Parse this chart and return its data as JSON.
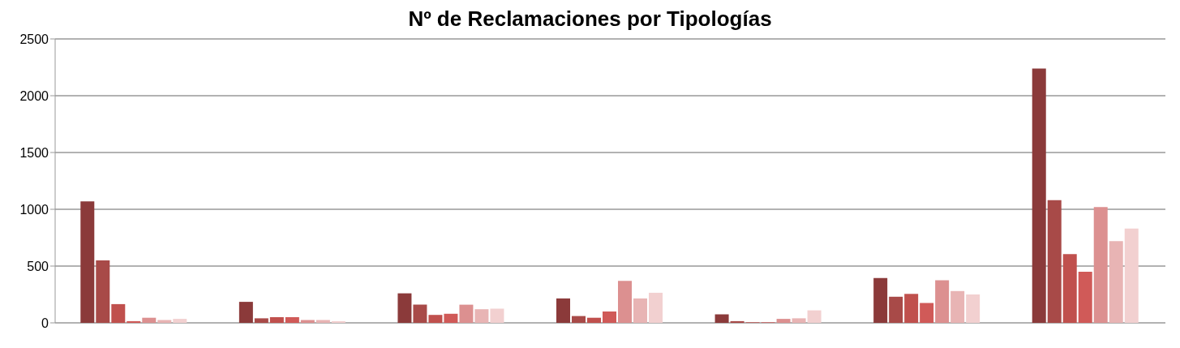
{
  "chart_data": {
    "type": "bar",
    "title": "Nº de Reclamaciones por Tipologías",
    "categories": [
      null,
      null,
      null,
      null,
      null,
      null,
      null
    ],
    "series": [
      {
        "color": "#8b3a3a",
        "values": [
          1070,
          185,
          260,
          215,
          75,
          395,
          2240
        ]
      },
      {
        "color": "#a84a48",
        "values": [
          550,
          40,
          160,
          60,
          15,
          230,
          1080
        ]
      },
      {
        "color": "#c0504d",
        "values": [
          165,
          50,
          70,
          45,
          5,
          255,
          605
        ]
      },
      {
        "color": "#d05a58",
        "values": [
          15,
          50,
          80,
          100,
          5,
          175,
          450
        ]
      },
      {
        "color": "#dc9090",
        "values": [
          45,
          25,
          160,
          370,
          35,
          375,
          1020
        ]
      },
      {
        "color": "#e8b4b4",
        "values": [
          25,
          25,
          120,
          215,
          40,
          280,
          720
        ]
      },
      {
        "color": "#f2d0d0",
        "values": [
          35,
          15,
          125,
          265,
          110,
          250,
          830
        ]
      }
    ],
    "ylim": [
      0,
      2500
    ],
    "yticks": [
      0,
      500,
      1000,
      1500,
      2000,
      2500
    ],
    "grid": "y"
  }
}
